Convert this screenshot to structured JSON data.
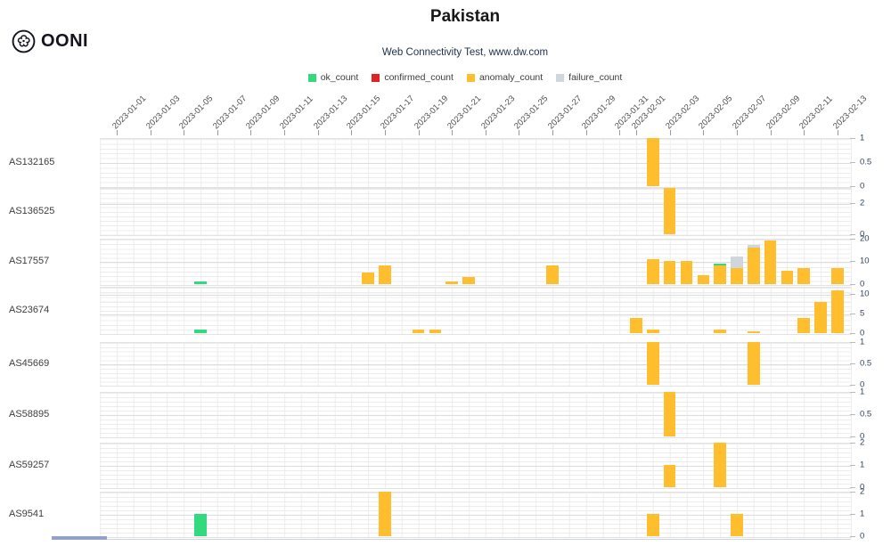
{
  "header": {
    "title": "Pakistan",
    "subtitle": "Web Connectivity Test, www.dw.com",
    "logo_text": "OONI"
  },
  "legend": [
    {
      "label": "ok_count",
      "color": "#33d97e"
    },
    {
      "label": "confirmed_count",
      "color": "#e02222"
    },
    {
      "label": "anomaly_count",
      "color": "#ffbe2d"
    },
    {
      "label": "failure_count",
      "color": "#d0d7dc"
    }
  ],
  "chart_data": {
    "type": "bar",
    "stacked": true,
    "grid": true,
    "legend_position": "top",
    "series_colors": {
      "ok_count": "#33d97e",
      "confirmed_count": "#e02222",
      "anomaly_count": "#ffbe2d",
      "failure_count": "#d0d7dc"
    },
    "x_axis": {
      "start_date": "2023-01-01",
      "end_date": "2023-02-14",
      "tick_labels": [
        "2023-01-01",
        "2023-01-03",
        "2023-01-05",
        "2023-01-07",
        "2023-01-09",
        "2023-01-11",
        "2023-01-13",
        "2023-01-15",
        "2023-01-17",
        "2023-01-19",
        "2023-01-21",
        "2023-01-23",
        "2023-01-25",
        "2023-01-27",
        "2023-01-29",
        "2023-01-31",
        "2023-02-01",
        "2023-02-03",
        "2023-02-05",
        "2023-02-07",
        "2023-02-09",
        "2023-02-11",
        "2023-02-13"
      ]
    },
    "rows": [
      {
        "asn": "AS132165",
        "y_ticks": [
          1,
          0.5,
          0
        ],
        "y_max": 1,
        "bars": [
          {
            "date": "2023-02-02",
            "segments": [
              {
                "series": "anomaly_count",
                "value": 1
              }
            ]
          }
        ]
      },
      {
        "asn": "AS136525",
        "y_ticks": [
          2,
          0
        ],
        "y_max": 3,
        "bars": [
          {
            "date": "2023-02-03",
            "segments": [
              {
                "series": "anomaly_count",
                "value": 3
              }
            ]
          }
        ]
      },
      {
        "asn": "AS17557",
        "y_ticks": [
          20,
          10,
          0
        ],
        "y_max": 20,
        "bars": [
          {
            "date": "2023-01-06",
            "segments": [
              {
                "series": "ok_count",
                "value": 1
              }
            ]
          },
          {
            "date": "2023-01-16",
            "segments": [
              {
                "series": "anomaly_count",
                "value": 5
              }
            ]
          },
          {
            "date": "2023-01-17",
            "segments": [
              {
                "series": "anomaly_count",
                "value": 8
              }
            ]
          },
          {
            "date": "2023-01-21",
            "segments": [
              {
                "series": "anomaly_count",
                "value": 1
              }
            ]
          },
          {
            "date": "2023-01-22",
            "segments": [
              {
                "series": "anomaly_count",
                "value": 3
              }
            ]
          },
          {
            "date": "2023-01-27",
            "segments": [
              {
                "series": "anomaly_count",
                "value": 8
              }
            ]
          },
          {
            "date": "2023-02-02",
            "segments": [
              {
                "series": "anomaly_count",
                "value": 11
              }
            ]
          },
          {
            "date": "2023-02-03",
            "segments": [
              {
                "series": "anomaly_count",
                "value": 10
              }
            ]
          },
          {
            "date": "2023-02-04",
            "segments": [
              {
                "series": "anomaly_count",
                "value": 10
              }
            ]
          },
          {
            "date": "2023-02-05",
            "segments": [
              {
                "series": "anomaly_count",
                "value": 4
              }
            ]
          },
          {
            "date": "2023-02-06",
            "segments": [
              {
                "series": "anomaly_count",
                "value": 8
              },
              {
                "series": "ok_count",
                "value": 1
              }
            ]
          },
          {
            "date": "2023-02-07",
            "segments": [
              {
                "series": "anomaly_count",
                "value": 7
              },
              {
                "series": "failure_count",
                "value": 5
              }
            ]
          },
          {
            "date": "2023-02-08",
            "segments": [
              {
                "series": "anomaly_count",
                "value": 16
              },
              {
                "series": "failure_count",
                "value": 1
              }
            ]
          },
          {
            "date": "2023-02-09",
            "segments": [
              {
                "series": "anomaly_count",
                "value": 19
              }
            ]
          },
          {
            "date": "2023-02-10",
            "segments": [
              {
                "series": "anomaly_count",
                "value": 6
              }
            ]
          },
          {
            "date": "2023-02-11",
            "segments": [
              {
                "series": "anomaly_count",
                "value": 7
              }
            ]
          },
          {
            "date": "2023-02-13",
            "segments": [
              {
                "series": "anomaly_count",
                "value": 7
              }
            ]
          }
        ]
      },
      {
        "asn": "AS23674",
        "y_ticks": [
          10,
          5,
          0
        ],
        "y_max": 12,
        "bars": [
          {
            "date": "2023-01-06",
            "segments": [
              {
                "series": "ok_count",
                "value": 1
              }
            ]
          },
          {
            "date": "2023-01-19",
            "segments": [
              {
                "series": "anomaly_count",
                "value": 1
              }
            ]
          },
          {
            "date": "2023-01-20",
            "segments": [
              {
                "series": "anomaly_count",
                "value": 1
              }
            ]
          },
          {
            "date": "2023-02-01",
            "segments": [
              {
                "series": "anomaly_count",
                "value": 4
              }
            ]
          },
          {
            "date": "2023-02-02",
            "segments": [
              {
                "series": "anomaly_count",
                "value": 1
              }
            ]
          },
          {
            "date": "2023-02-06",
            "segments": [
              {
                "series": "anomaly_count",
                "value": 1
              }
            ]
          },
          {
            "date": "2023-02-08",
            "segments": [
              {
                "series": "anomaly_count",
                "value": 0.5
              }
            ]
          },
          {
            "date": "2023-02-11",
            "segments": [
              {
                "series": "anomaly_count",
                "value": 4
              }
            ]
          },
          {
            "date": "2023-02-12",
            "segments": [
              {
                "series": "anomaly_count",
                "value": 8
              }
            ]
          },
          {
            "date": "2023-02-13",
            "segments": [
              {
                "series": "anomaly_count",
                "value": 11
              }
            ]
          }
        ]
      },
      {
        "asn": "AS45669",
        "y_ticks": [
          1,
          0.5,
          0
        ],
        "y_max": 1,
        "bars": [
          {
            "date": "2023-02-02",
            "segments": [
              {
                "series": "anomaly_count",
                "value": 1
              }
            ]
          },
          {
            "date": "2023-02-08",
            "segments": [
              {
                "series": "anomaly_count",
                "value": 1
              }
            ]
          }
        ]
      },
      {
        "asn": "AS58895",
        "y_ticks": [
          1,
          0.5,
          0
        ],
        "y_max": 1,
        "bars": [
          {
            "date": "2023-02-03",
            "segments": [
              {
                "series": "anomaly_count",
                "value": 1
              }
            ]
          }
        ]
      },
      {
        "asn": "AS59257",
        "y_ticks": [
          2,
          1,
          0
        ],
        "y_max": 2,
        "bars": [
          {
            "date": "2023-02-03",
            "segments": [
              {
                "series": "anomaly_count",
                "value": 1
              }
            ]
          },
          {
            "date": "2023-02-06",
            "segments": [
              {
                "series": "anomaly_count",
                "value": 2
              }
            ]
          }
        ]
      },
      {
        "asn": "AS9541",
        "y_ticks": [
          2,
          1,
          0
        ],
        "y_max": 2,
        "bars": [
          {
            "date": "2023-01-06",
            "segments": [
              {
                "series": "ok_count",
                "value": 1
              }
            ]
          },
          {
            "date": "2023-01-17",
            "segments": [
              {
                "series": "anomaly_count",
                "value": 2
              }
            ]
          },
          {
            "date": "2023-02-02",
            "segments": [
              {
                "series": "anomaly_count",
                "value": 1
              }
            ]
          },
          {
            "date": "2023-02-07",
            "segments": [
              {
                "series": "anomaly_count",
                "value": 1
              }
            ]
          }
        ]
      }
    ]
  }
}
